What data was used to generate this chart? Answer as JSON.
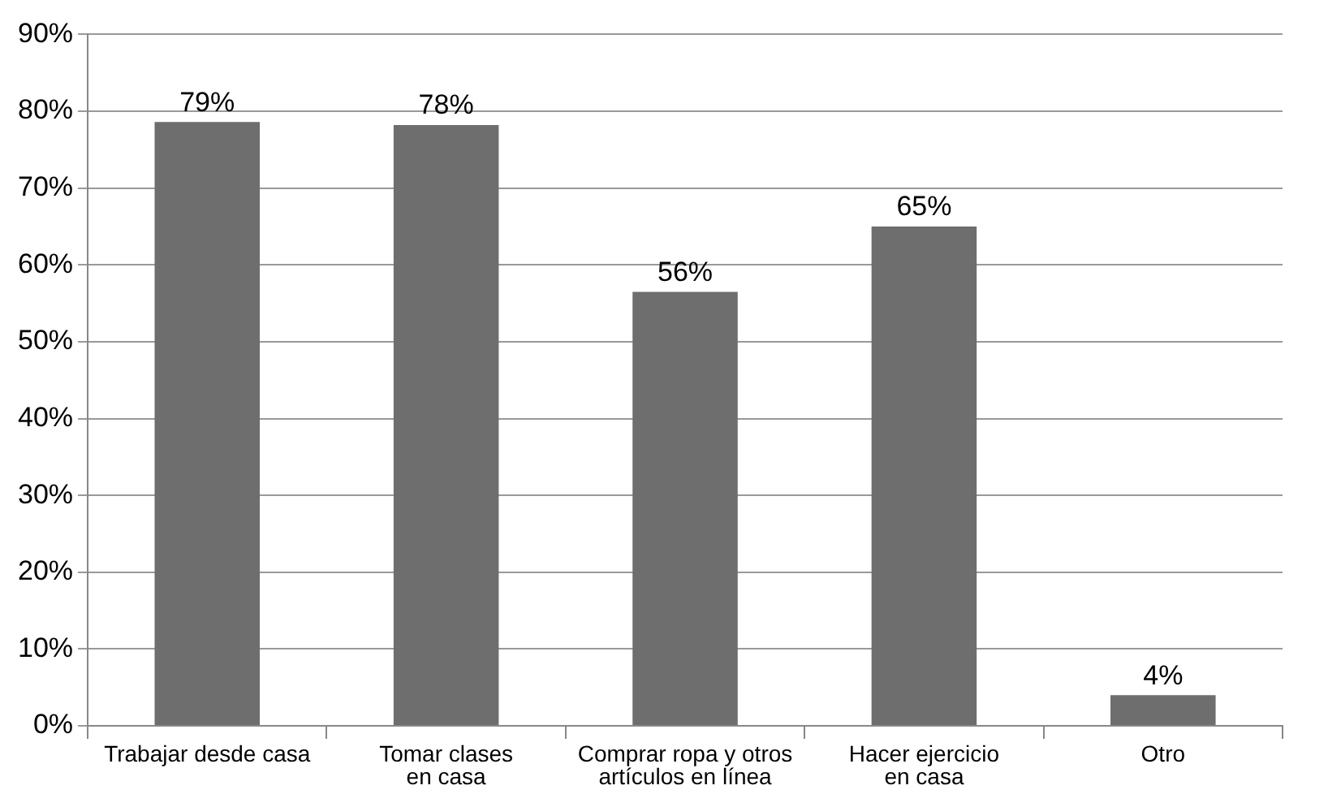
{
  "chart_data": {
    "type": "bar",
    "categories": [
      "Trabajar desde casa",
      "Tomar clases\nen casa",
      "Comprar ropa y otros\nartículos en línea",
      "Hacer ejercicio\nen casa",
      "Otro"
    ],
    "values": [
      78.6,
      78.2,
      56.5,
      65,
      4
    ],
    "value_labels": [
      "79%",
      "78%",
      "56%",
      "65%",
      "4%"
    ],
    "color": "#6e6e6e",
    "ylim": [
      0,
      90
    ],
    "yticks": [
      {
        "value": 0,
        "label": "0%"
      },
      {
        "value": 10,
        "label": "10%"
      },
      {
        "value": 20,
        "label": "20%"
      },
      {
        "value": 30,
        "label": "30%"
      },
      {
        "value": 40,
        "label": "40%"
      },
      {
        "value": 50,
        "label": "50%"
      },
      {
        "value": 60,
        "label": "60%"
      },
      {
        "value": 70,
        "label": "70%"
      },
      {
        "value": 80,
        "label": "80%"
      },
      {
        "value": 90,
        "label": "90%"
      }
    ],
    "grid": "y",
    "legend": false
  }
}
